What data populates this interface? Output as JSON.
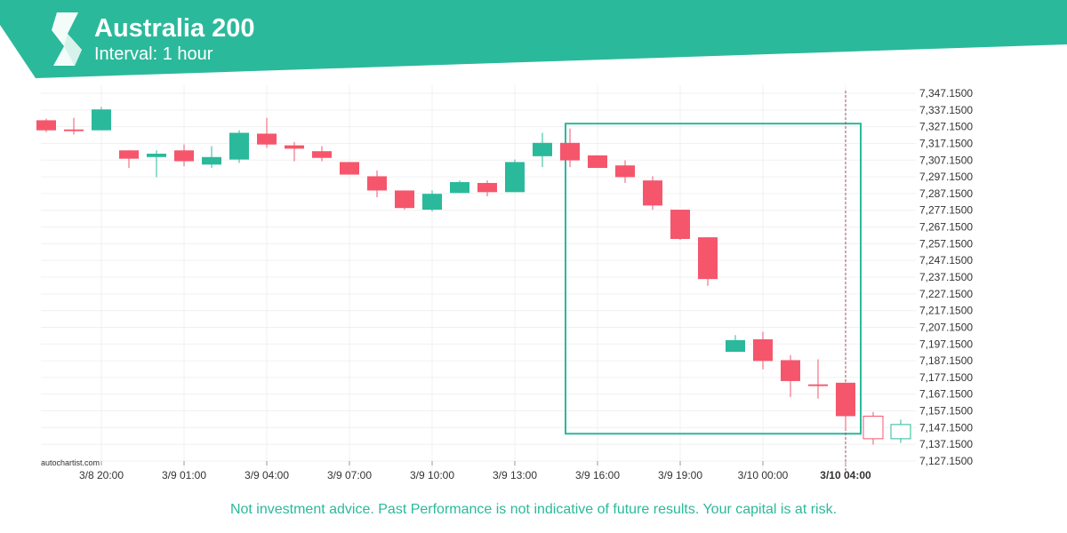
{
  "header": {
    "title": "Australia 200",
    "subtitle": "Interval: 1 hour"
  },
  "footer": {
    "watermark": "autochartist.com",
    "disclaimer": "Not investment advice. Past Performance is not indicative of future results. Your capital is at risk."
  },
  "colors": {
    "brand": "#2bb99b",
    "bullish": "#2bb99b",
    "bearish": "#f5566c",
    "grid": "#f0f0f0",
    "marker": "#a0525e"
  },
  "icons": {
    "logo": "autochartist-logo-icon"
  },
  "chart_data": {
    "type": "candlestick",
    "title": "Australia 200",
    "subtitle": "Interval: 1 hour",
    "ylim": [
      7127.15,
      7347.15
    ],
    "y_ticks": [
      "7,347.1500",
      "7,337.1500",
      "7,327.1500",
      "7,317.1500",
      "7,307.1500",
      "7,297.1500",
      "7,287.1500",
      "7,277.1500",
      "7,267.1500",
      "7,257.1500",
      "7,247.1500",
      "7,237.1500",
      "7,227.1500",
      "7,217.1500",
      "7,207.1500",
      "7,197.1500",
      "7,187.1500",
      "7,177.1500",
      "7,167.1500",
      "7,157.1500",
      "7,147.1500",
      "7,137.1500",
      "7,127.1500"
    ],
    "x_ticks": [
      {
        "index": 2,
        "label": "3/8 20:00"
      },
      {
        "index": 5,
        "label": "3/9 01:00"
      },
      {
        "index": 8,
        "label": "3/9 04:00"
      },
      {
        "index": 11,
        "label": "3/9 07:00"
      },
      {
        "index": 14,
        "label": "3/9 10:00"
      },
      {
        "index": 17,
        "label": "3/9 13:00"
      },
      {
        "index": 20,
        "label": "3/9 16:00"
      },
      {
        "index": 23,
        "label": "3/9 19:00"
      },
      {
        "index": 26,
        "label": "3/10 00:00"
      },
      {
        "index": 29,
        "label": "3/10 04:00",
        "bold": true
      }
    ],
    "candles": [
      {
        "open": 7331.0,
        "high": 7332.0,
        "low": 7324.0,
        "close": 7325.0,
        "dir": "down"
      },
      {
        "open": 7325.5,
        "high": 7332.5,
        "low": 7322.5,
        "close": 7324.5,
        "dir": "down"
      },
      {
        "open": 7325.0,
        "high": 7339.0,
        "low": 7325.0,
        "close": 7337.5,
        "dir": "up"
      },
      {
        "open": 7313.0,
        "high": 7313.0,
        "low": 7302.5,
        "close": 7308.0,
        "dir": "down"
      },
      {
        "open": 7309.0,
        "high": 7313.0,
        "low": 7297.0,
        "close": 7311.0,
        "dir": "up"
      },
      {
        "open": 7313.0,
        "high": 7316.5,
        "low": 7303.5,
        "close": 7306.5,
        "dir": "down"
      },
      {
        "open": 7304.5,
        "high": 7315.5,
        "low": 7302.5,
        "close": 7309.0,
        "dir": "up"
      },
      {
        "open": 7307.5,
        "high": 7325.0,
        "low": 7305.5,
        "close": 7323.5,
        "dir": "up"
      },
      {
        "open": 7323.0,
        "high": 7332.5,
        "low": 7314.5,
        "close": 7316.5,
        "dir": "down"
      },
      {
        "open": 7316.0,
        "high": 7318.0,
        "low": 7306.5,
        "close": 7314.0,
        "dir": "down"
      },
      {
        "open": 7312.5,
        "high": 7315.5,
        "low": 7306.5,
        "close": 7308.5,
        "dir": "down"
      },
      {
        "open": 7306.0,
        "high": 7306.0,
        "low": 7298.5,
        "close": 7298.5,
        "dir": "down"
      },
      {
        "open": 7297.5,
        "high": 7301.0,
        "low": 7285.0,
        "close": 7289.0,
        "dir": "down"
      },
      {
        "open": 7289.0,
        "high": 7289.0,
        "low": 7277.5,
        "close": 7278.5,
        "dir": "down"
      },
      {
        "open": 7277.5,
        "high": 7289.0,
        "low": 7276.5,
        "close": 7287.0,
        "dir": "up"
      },
      {
        "open": 7287.5,
        "high": 7295.0,
        "low": 7287.5,
        "close": 7294.0,
        "dir": "up"
      },
      {
        "open": 7293.5,
        "high": 7295.0,
        "low": 7285.5,
        "close": 7288.0,
        "dir": "down"
      },
      {
        "open": 7288.0,
        "high": 7307.5,
        "low": 7288.0,
        "close": 7306.0,
        "dir": "up"
      },
      {
        "open": 7309.5,
        "high": 7323.5,
        "low": 7303.0,
        "close": 7317.5,
        "dir": "up"
      },
      {
        "open": 7317.5,
        "high": 7326.0,
        "low": 7303.0,
        "close": 7307.0,
        "dir": "down"
      },
      {
        "open": 7310.0,
        "high": 7310.0,
        "low": 7302.5,
        "close": 7302.5,
        "dir": "down"
      },
      {
        "open": 7304.0,
        "high": 7307.0,
        "low": 7293.5,
        "close": 7297.0,
        "dir": "down"
      },
      {
        "open": 7295.0,
        "high": 7297.5,
        "low": 7277.5,
        "close": 7280.0,
        "dir": "down"
      },
      {
        "open": 7277.5,
        "high": 7277.5,
        "low": 7259.5,
        "close": 7260.0,
        "dir": "down"
      },
      {
        "open": 7261.0,
        "high": 7261.0,
        "low": 7232.0,
        "close": 7236.0,
        "dir": "down"
      },
      {
        "open": 7192.5,
        "high": 7202.5,
        "low": 7192.5,
        "close": 7199.5,
        "dir": "up"
      },
      {
        "open": 7200.0,
        "high": 7204.5,
        "low": 7182.0,
        "close": 7187.0,
        "dir": "down"
      },
      {
        "open": 7187.5,
        "high": 7190.5,
        "low": 7165.5,
        "close": 7175.0,
        "dir": "down"
      },
      {
        "open": 7173.0,
        "high": 7188.0,
        "low": 7164.5,
        "close": 7172.0,
        "dir": "down"
      },
      {
        "open": 7174.0,
        "high": 7174.0,
        "low": 7145.5,
        "close": 7154.0,
        "dir": "down"
      },
      {
        "open": 7154.0,
        "high": 7156.5,
        "low": 7137.0,
        "close": 7140.5,
        "dir": "projected-down"
      },
      {
        "open": 7140.5,
        "high": 7152.0,
        "low": 7138.0,
        "close": 7149.0,
        "dir": "projected-up"
      }
    ],
    "pattern_box": {
      "start_index": 19,
      "end_index": 29,
      "top": 7329.0,
      "bottom": 7143.5
    },
    "marker_index": 29,
    "grid": true
  }
}
